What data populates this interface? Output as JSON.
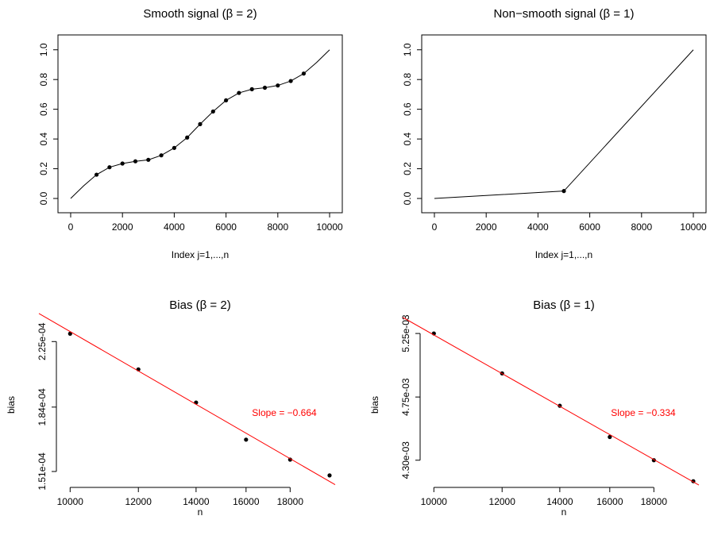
{
  "chart_data": [
    {
      "type": "line",
      "title": "Smooth signal (β = 2)",
      "xlabel": "Index j=1,...,n",
      "series": [
        {
          "mode": "line",
          "color": "#000000",
          "x": [
            0,
            500,
            1000,
            1500,
            2000,
            2500,
            3000,
            3500,
            4000,
            4500,
            5000,
            5500,
            6000,
            6500,
            7000,
            7500,
            8000,
            8500,
            9000,
            9500,
            10000
          ],
          "values": [
            0,
            0.085,
            0.16,
            0.21,
            0.235,
            0.25,
            0.26,
            0.29,
            0.34,
            0.41,
            0.5,
            0.585,
            0.66,
            0.71,
            0.735,
            0.745,
            0.76,
            0.79,
            0.84,
            0.915,
            1.0
          ]
        },
        {
          "mode": "points",
          "color": "#000000",
          "x": [
            1000,
            1500,
            2000,
            2500,
            3000,
            3500,
            4000,
            4500,
            5000,
            5500,
            6000,
            6500,
            7000,
            7500,
            8000,
            8500,
            9000
          ],
          "values": [
            0.16,
            0.21,
            0.235,
            0.25,
            0.26,
            0.29,
            0.34,
            0.41,
            0.5,
            0.585,
            0.66,
            0.71,
            0.735,
            0.745,
            0.76,
            0.79,
            0.84
          ]
        }
      ],
      "xlim": [
        -490,
        10490
      ],
      "ylim": [
        -0.096,
        1.1
      ],
      "xticks": [
        0,
        2000,
        4000,
        6000,
        8000,
        10000
      ],
      "yticks": [
        {
          "value": 0,
          "label": "0.0"
        },
        0.2,
        0.4,
        0.6,
        0.8,
        {
          "value": 1,
          "label": "1.0"
        }
      ],
      "box": true
    },
    {
      "type": "line",
      "title": "Non−smooth signal (β = 1)",
      "xlabel": "Index j=1,...,n",
      "series": [
        {
          "mode": "line",
          "color": "#000000",
          "x": [
            0,
            5000,
            10000
          ],
          "values": [
            0,
            0.05,
            1.0
          ]
        },
        {
          "mode": "points",
          "color": "#000000",
          "x": [
            5000
          ],
          "values": [
            0.05
          ]
        }
      ],
      "xlim": [
        -490,
        10490
      ],
      "ylim": [
        -0.096,
        1.1
      ],
      "xticks": [
        0,
        2000,
        4000,
        6000,
        8000,
        10000
      ],
      "yticks": [
        {
          "value": 0,
          "label": "0.0"
        },
        0.2,
        0.4,
        0.6,
        0.8,
        {
          "value": 1,
          "label": "1.0"
        }
      ],
      "box": true
    },
    {
      "type": "scatter",
      "title": "Bias (β = 2)",
      "xlabel": "n",
      "ylabel": "bias",
      "color": "#000000",
      "x": [
        10000,
        12000,
        14000,
        16000,
        18000,
        20000
      ],
      "values": [
        0.0002305,
        0.0002066,
        0.0001866,
        0.0001665,
        0.0001566,
        0.0001492
      ],
      "xlog": true,
      "ylog": true,
      "xlim": [
        9200,
        20300
      ],
      "ylim": [
        0.0001445,
        0.0002393
      ],
      "xticks": [
        10000,
        12000,
        14000,
        16000,
        18000
      ],
      "yticks": [
        {
          "value": 0.000151,
          "label": "1.51e-04"
        },
        {
          "value": 0.000184,
          "label": "1.84e-04"
        },
        {
          "value": 0.000225,
          "label": "2.25e-04"
        }
      ],
      "fit": {
        "slope": -0.664,
        "color": "#ff0000",
        "label": "Slope =  −0.664"
      }
    },
    {
      "type": "scatter",
      "title": "Bias (β = 1)",
      "xlabel": "n",
      "ylabel": "bias",
      "color": "#000000",
      "x": [
        10000,
        12000,
        14000,
        16000,
        18000,
        20000
      ],
      "values": [
        0.00525,
        0.00493,
        0.004685,
        0.00446,
        0.0043,
        0.00416
      ],
      "xlog": true,
      "ylog": true,
      "xlim": [
        9200,
        20300
      ],
      "ylim": [
        0.00413,
        0.00535
      ],
      "xticks": [
        10000,
        12000,
        14000,
        16000,
        18000
      ],
      "yticks": [
        {
          "value": 0.0043,
          "label": "4.30e-03"
        },
        {
          "value": 0.00475,
          "label": "4.75e-03"
        },
        {
          "value": 0.00525,
          "label": "5.25e-03"
        }
      ],
      "fit": {
        "slope": -0.334,
        "color": "#ff0000",
        "label": "Slope =  −0.334"
      }
    }
  ]
}
